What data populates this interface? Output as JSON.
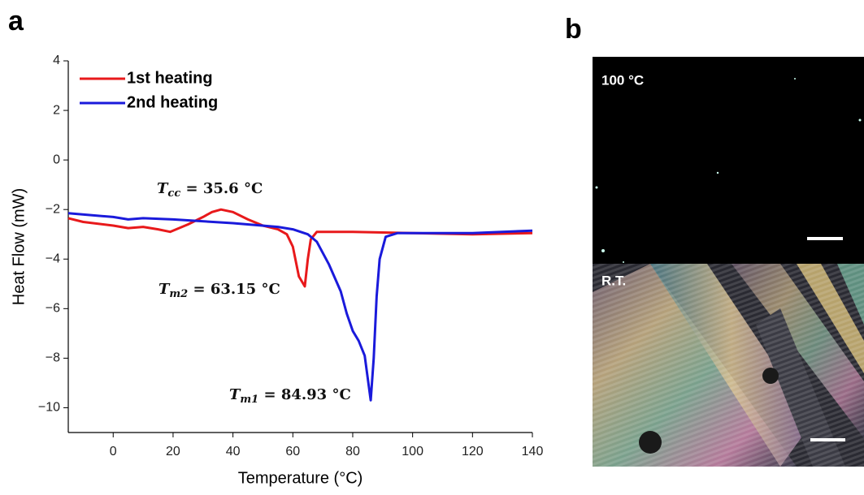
{
  "panels": {
    "a": "a",
    "b": "b"
  },
  "images": [
    {
      "label": "100 °C"
    },
    {
      "label": "R.T."
    }
  ],
  "chart_data": {
    "type": "line",
    "x_label": "Temperature (°C)",
    "y_label": "Heat Flow (mW)",
    "xlim": [
      -15,
      140
    ],
    "ylim": [
      -11,
      4
    ],
    "xticks": [
      0,
      20,
      40,
      60,
      80,
      100,
      120,
      140
    ],
    "yticks": [
      {
        "value": -10,
        "label": "−10"
      },
      {
        "value": -8,
        "label": "−8"
      },
      {
        "value": -6,
        "label": "−6"
      },
      {
        "value": -4,
        "label": "−4"
      },
      {
        "value": -2,
        "label": "−2"
      },
      0,
      2,
      4
    ],
    "legend": "upper left",
    "series": [
      {
        "name": "1st heating",
        "color": "#e8191b",
        "x": [
          -15,
          -10,
          0,
          5,
          10,
          15,
          19,
          25,
          30,
          33,
          36,
          40,
          45,
          50,
          55,
          58,
          60,
          62,
          64,
          65,
          66,
          68,
          80,
          100,
          120,
          140
        ],
        "values": [
          -2.35,
          -2.5,
          -2.65,
          -2.75,
          -2.7,
          -2.8,
          -2.9,
          -2.6,
          -2.3,
          -2.1,
          -2.0,
          -2.1,
          -2.4,
          -2.65,
          -2.8,
          -3.0,
          -3.5,
          -4.7,
          -5.1,
          -4.0,
          -3.2,
          -2.9,
          -2.9,
          -2.95,
          -3.0,
          -2.95
        ]
      },
      {
        "name": "2nd heating",
        "color": "#1a1adb",
        "x": [
          -15,
          0,
          5,
          10,
          20,
          40,
          55,
          60,
          65,
          68,
          72,
          76,
          78,
          80,
          82,
          84,
          85,
          86,
          87,
          88,
          89,
          91,
          95,
          100,
          120,
          140
        ],
        "values": [
          -2.15,
          -2.3,
          -2.4,
          -2.35,
          -2.4,
          -2.55,
          -2.7,
          -2.8,
          -3.0,
          -3.3,
          -4.2,
          -5.3,
          -6.2,
          -6.9,
          -7.3,
          -7.9,
          -8.8,
          -9.7,
          -8.0,
          -5.5,
          -4.0,
          -3.1,
          -2.95,
          -2.95,
          -2.95,
          -2.85
        ]
      }
    ],
    "annotations": [
      {
        "symbol": "T",
        "subscript": "cc",
        "text": " = 35.6 °C"
      },
      {
        "symbol": "T",
        "subscript": "m2",
        "text": " = 63.15 °C"
      },
      {
        "symbol": "T",
        "subscript": "m1",
        "text": " = 84.93 °C"
      }
    ]
  }
}
